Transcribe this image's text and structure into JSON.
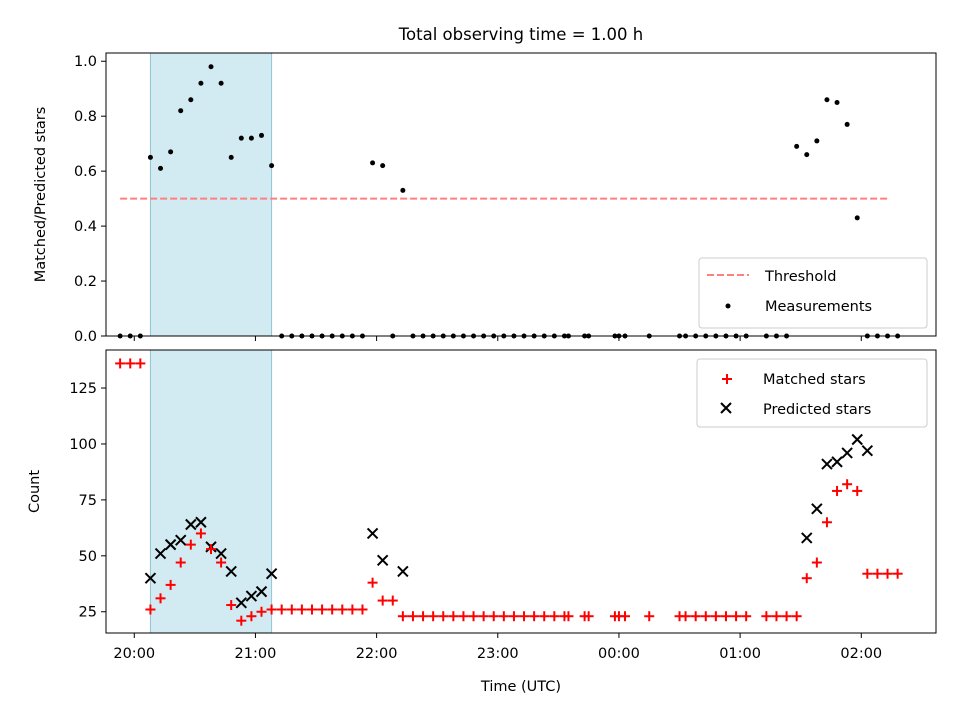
{
  "title": "Total observing time = 1.00 h",
  "x_label": "Time (UTC)",
  "x_tick_labels": [
    "20:00",
    "21:00",
    "22:00",
    "23:00",
    "00:00",
    "01:00",
    "02:00"
  ],
  "colors": {
    "threshold": "#ff7f7f",
    "measurement": "#000000",
    "matched": "#ff0000",
    "predicted": "#000000",
    "observing_window": "#add8e6"
  },
  "chart_data": [
    {
      "type": "scatter",
      "ylabel": "Matched/Predicted stars",
      "y_ticks": [
        "0.0",
        "0.2",
        "0.4",
        "0.6",
        "0.8",
        "1.0"
      ],
      "xlim": [
        "19:46",
        "02:37"
      ],
      "ylim": [
        0,
        1.03
      ],
      "grid": false,
      "legend_position": "lower-right",
      "shaded_region": {
        "start": "20:08",
        "end": "21:08"
      },
      "threshold": {
        "name": "Threshold",
        "y": 0.5,
        "x_start": "19:53",
        "x_end": "02:13"
      },
      "series": [
        {
          "name": "Measurements",
          "x": [
            "19:53",
            "19:58",
            "20:03",
            "20:08",
            "20:13",
            "20:18",
            "20:23",
            "20:28",
            "20:33",
            "20:38",
            "20:43",
            "20:48",
            "20:53",
            "20:58",
            "21:03",
            "21:08",
            "21:13",
            "21:18",
            "21:23",
            "21:28",
            "21:33",
            "21:38",
            "21:43",
            "21:48",
            "21:53",
            "21:58",
            "22:03",
            "22:08",
            "22:13",
            "22:18",
            "22:23",
            "22:28",
            "22:33",
            "22:38",
            "22:43",
            "22:48",
            "22:53",
            "22:58",
            "23:03",
            "23:08",
            "23:13",
            "23:18",
            "23:23",
            "23:28",
            "23:33",
            "23:35",
            "23:43",
            "23:45",
            "23:58",
            "24:00",
            "24:03",
            "24:15",
            "24:30",
            "24:33",
            "24:38",
            "24:43",
            "24:48",
            "24:53",
            "24:58",
            "25:03",
            "25:13",
            "25:18",
            "25:23",
            "25:28",
            "25:33",
            "25:38",
            "25:43",
            "25:48",
            "25:53",
            "25:58",
            "26:03",
            "26:08",
            "26:13",
            "26:18"
          ],
          "y": [
            0,
            0,
            0,
            0.65,
            0.61,
            0.67,
            0.82,
            0.86,
            0.92,
            0.98,
            0.92,
            0.65,
            0.72,
            0.72,
            0.73,
            0.62,
            0,
            0,
            0,
            0,
            0,
            0,
            0,
            0,
            0,
            0.63,
            0.62,
            0,
            0.53,
            0,
            0,
            0,
            0,
            0,
            0,
            0,
            0,
            0,
            0,
            0,
            0,
            0,
            0,
            0,
            0,
            0,
            0,
            0,
            0,
            0,
            0,
            0,
            0,
            0,
            0,
            0,
            0,
            0,
            0,
            0,
            0,
            0,
            0,
            0.69,
            0.66,
            0.71,
            0.86,
            0.85,
            0.77,
            0.43,
            0,
            0,
            0,
            0
          ]
        }
      ]
    },
    {
      "type": "scatter",
      "ylabel": "Count",
      "y_ticks": [
        "25",
        "50",
        "75",
        "100",
        "125"
      ],
      "xlim": [
        "19:46",
        "02:37"
      ],
      "ylim": [
        15.5,
        142
      ],
      "grid": false,
      "legend_position": "upper-right",
      "shaded_region": {
        "start": "20:08",
        "end": "21:08"
      },
      "series": [
        {
          "name": "Matched stars",
          "x": [
            "19:53",
            "19:58",
            "20:03",
            "20:08",
            "20:13",
            "20:18",
            "20:23",
            "20:28",
            "20:33",
            "20:38",
            "20:43",
            "20:48",
            "20:53",
            "20:58",
            "21:03",
            "21:08",
            "21:13",
            "21:18",
            "21:23",
            "21:28",
            "21:33",
            "21:38",
            "21:43",
            "21:48",
            "21:53",
            "21:58",
            "22:03",
            "22:08",
            "22:13",
            "22:18",
            "22:23",
            "22:28",
            "22:33",
            "22:38",
            "22:43",
            "22:48",
            "22:53",
            "22:58",
            "23:03",
            "23:08",
            "23:13",
            "23:18",
            "23:23",
            "23:28",
            "23:33",
            "23:35",
            "23:43",
            "23:45",
            "23:58",
            "24:00",
            "24:03",
            "24:15",
            "24:30",
            "24:33",
            "24:38",
            "24:43",
            "24:48",
            "24:53",
            "24:58",
            "25:03",
            "25:13",
            "25:18",
            "25:23",
            "25:28",
            "25:33",
            "25:38",
            "25:43",
            "25:48",
            "25:53",
            "25:58",
            "26:03",
            "26:08",
            "26:13",
            "26:18"
          ],
          "y": [
            136,
            136,
            136,
            26,
            31,
            37,
            47,
            55,
            60,
            53,
            47,
            28,
            21,
            23,
            25,
            26,
            26,
            26,
            26,
            26,
            26,
            26,
            26,
            26,
            26,
            38,
            30,
            30,
            23,
            23,
            23,
            23,
            23,
            23,
            23,
            23,
            23,
            23,
            23,
            23,
            23,
            23,
            23,
            23,
            23,
            23,
            23,
            23,
            23,
            23,
            23,
            23,
            23,
            23,
            23,
            23,
            23,
            23,
            23,
            23,
            23,
            23,
            23,
            23,
            40,
            47,
            65,
            79,
            82,
            79,
            42,
            42,
            42,
            42
          ]
        },
        {
          "name": "Predicted stars",
          "x": [
            "20:08",
            "20:13",
            "20:18",
            "20:23",
            "20:28",
            "20:33",
            "20:38",
            "20:43",
            "20:48",
            "20:53",
            "20:58",
            "21:03",
            "21:08",
            "21:58",
            "22:03",
            "22:13",
            "25:33",
            "25:38",
            "25:43",
            "25:48",
            "25:53",
            "25:58",
            "26:03"
          ],
          "y": [
            40,
            51,
            55,
            57,
            64,
            65,
            54,
            51,
            43,
            29,
            32,
            34,
            42,
            60,
            48,
            43,
            58,
            71,
            91,
            92,
            96,
            102,
            97
          ]
        }
      ]
    }
  ]
}
